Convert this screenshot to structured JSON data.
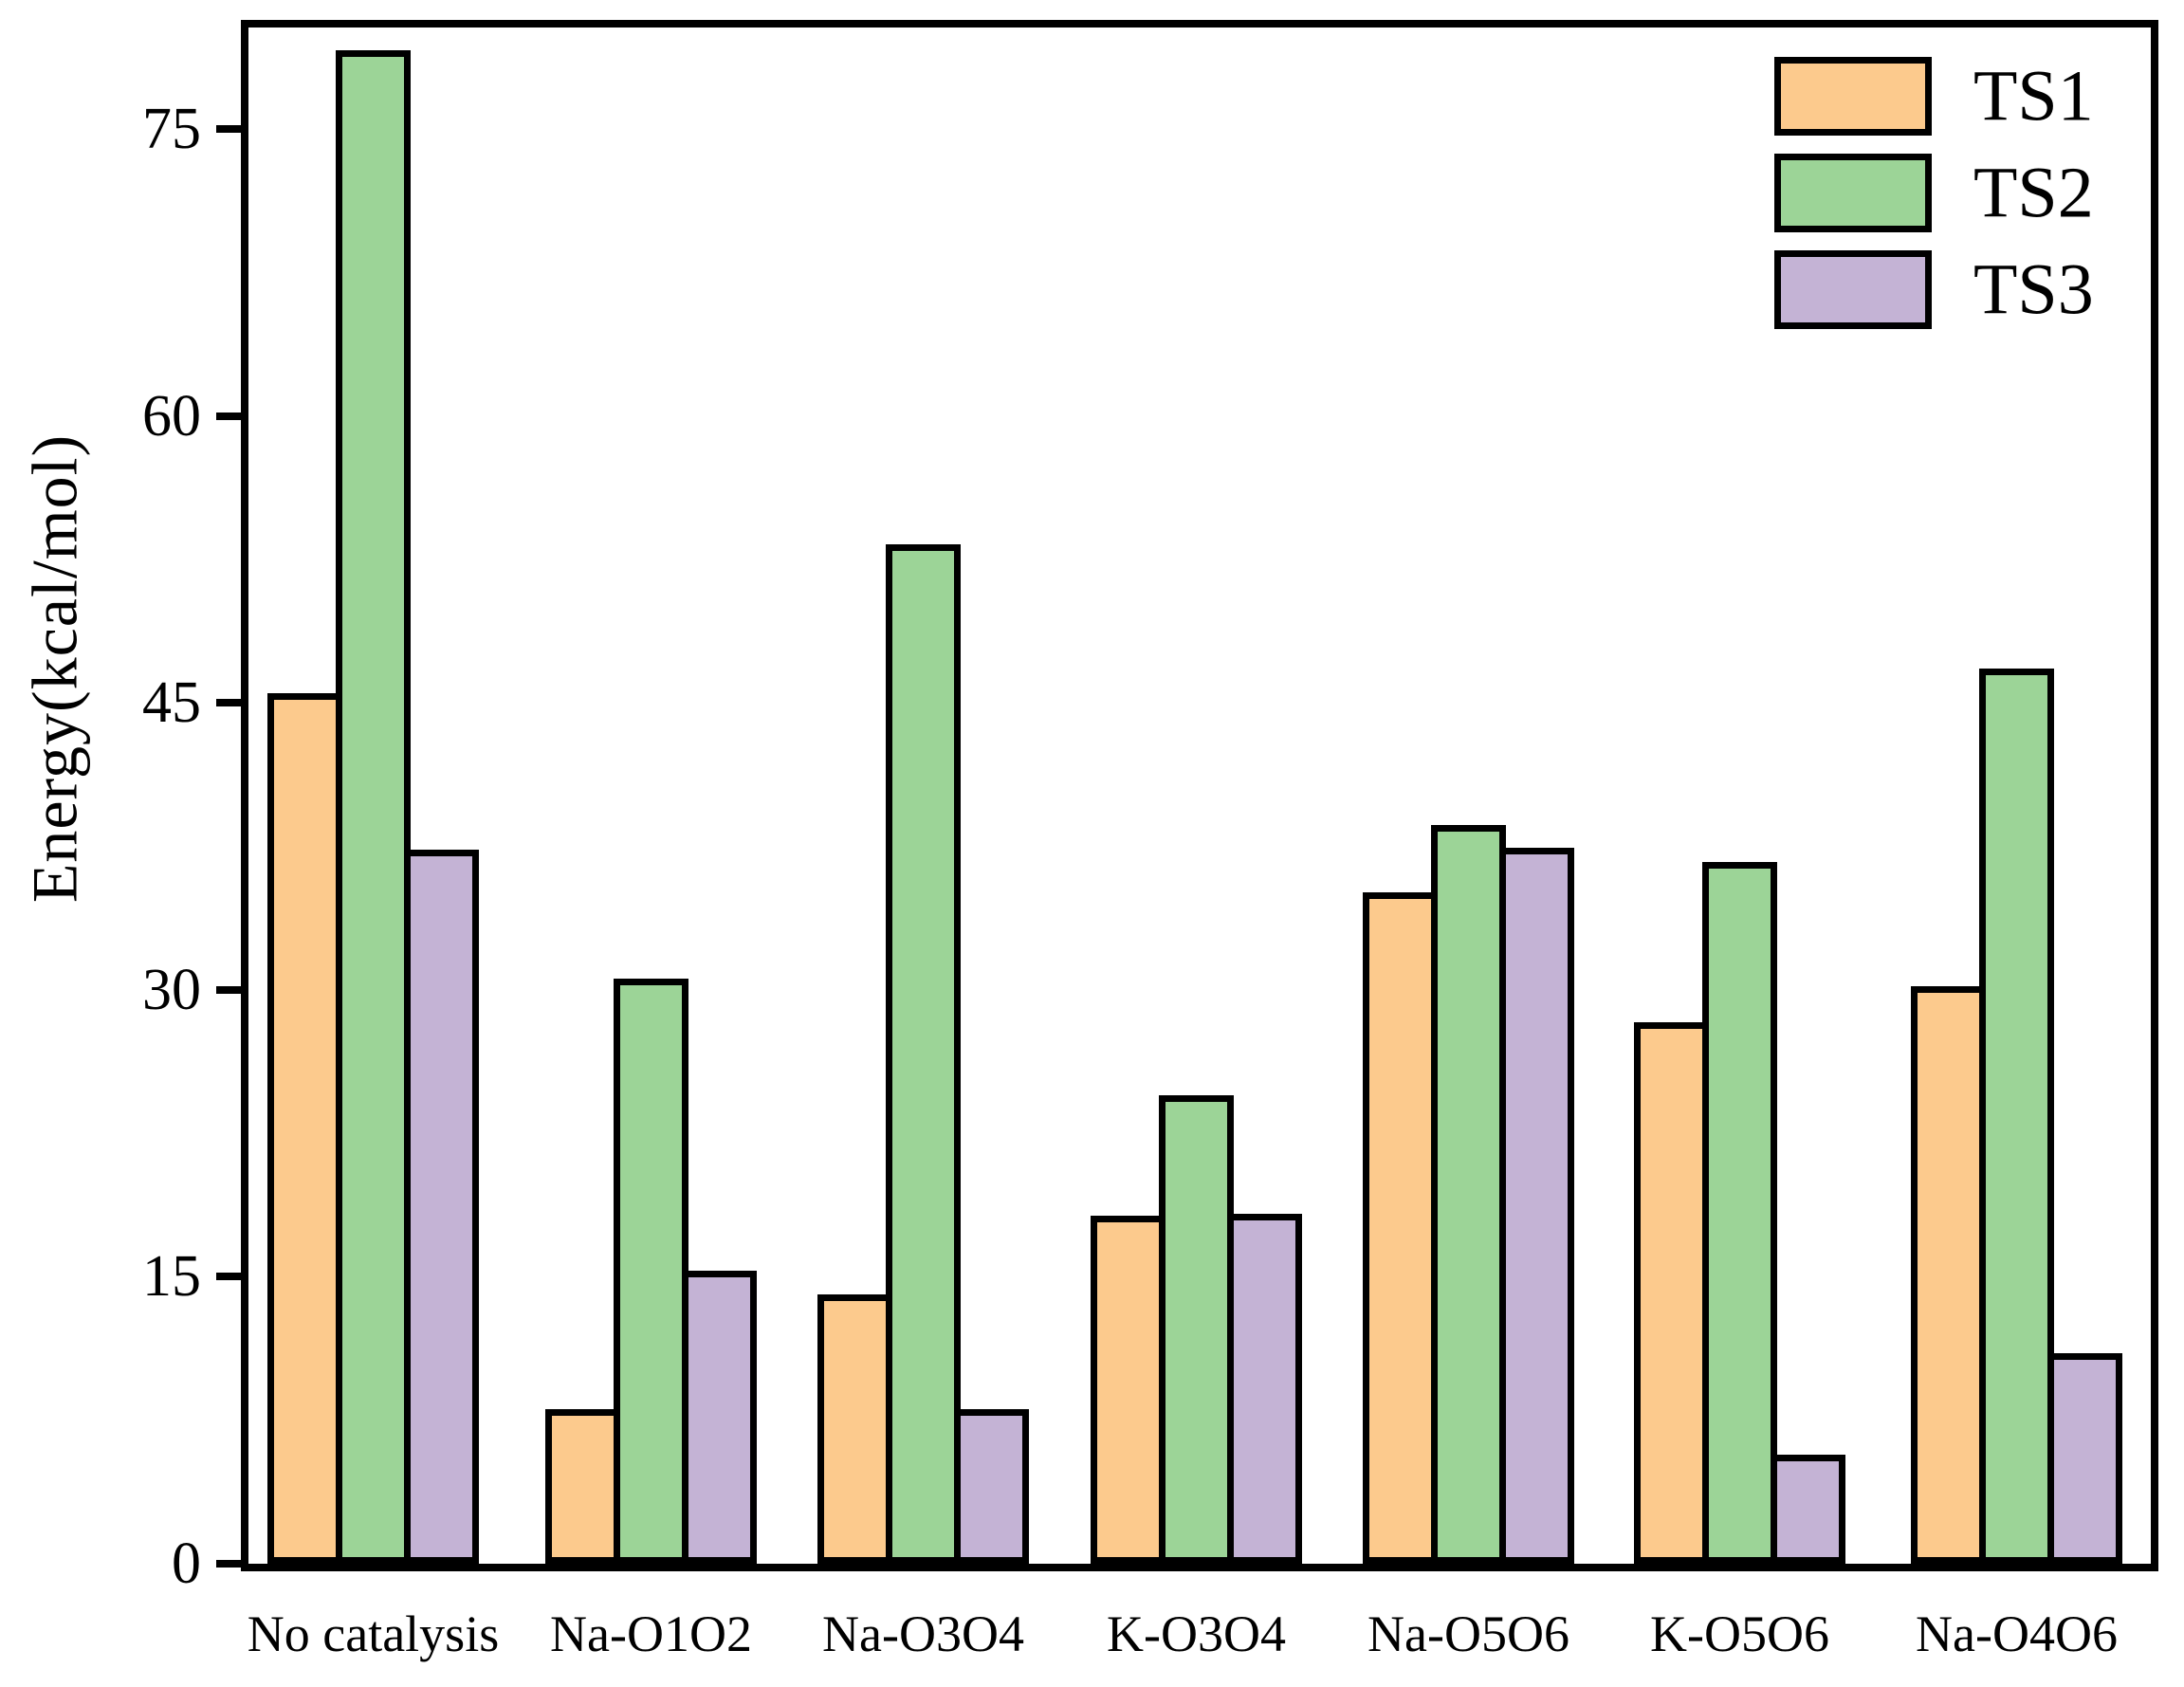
{
  "chart_data": {
    "type": "bar",
    "title": "",
    "xlabel": "",
    "ylabel": "Energy(kcal/mol)",
    "categories": [
      "No catalysis",
      "Na-O1O2",
      "Na-O3O4",
      "K-O3O4",
      "Na-O5O6",
      "K-O5O6",
      "Na-O4O6"
    ],
    "series": [
      {
        "name": "TS1",
        "color": "#FCCA8D",
        "values": [
          45.5,
          8.1,
          14.1,
          18.2,
          35.1,
          28.3,
          30.2
        ]
      },
      {
        "name": "TS2",
        "color": "#9CD497",
        "values": [
          79.1,
          30.6,
          53.3,
          24.5,
          38.6,
          36.7,
          46.8
        ]
      },
      {
        "name": "TS3",
        "color": "#C4B3D5",
        "values": [
          37.3,
          15.3,
          8.1,
          18.3,
          37.4,
          5.7,
          11.0
        ]
      }
    ],
    "yticks": [
      0,
      15,
      30,
      45,
      60,
      75
    ],
    "ylim": [
      0,
      80.3
    ],
    "grid": false,
    "legend_position": "top-right",
    "bar_border_color": "#000000",
    "frame": true
  }
}
